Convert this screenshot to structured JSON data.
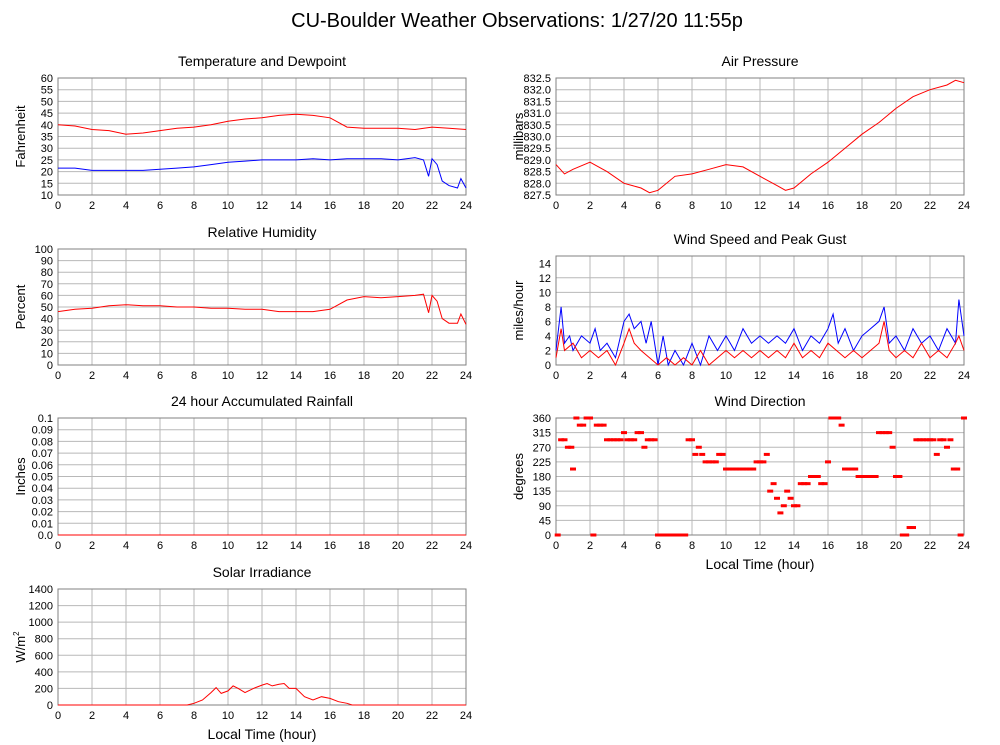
{
  "page": {
    "title": "CU-Boulder Weather Observations: 1/27/20 11:55p"
  },
  "colors": {
    "red": "#ff0000",
    "blue": "#0000ff",
    "grid": "#b8b8b8",
    "frame": "#808080"
  },
  "chart_data": [
    {
      "type": "line",
      "title": "Temperature and Dewpoint",
      "ylabel": "Fahrenheit",
      "xlabel": "",
      "xlim": [
        0,
        24
      ],
      "ylim": [
        10,
        60
      ],
      "grid": true,
      "x_ticks": [
        0,
        2,
        4,
        6,
        8,
        10,
        12,
        14,
        16,
        18,
        20,
        22,
        24
      ],
      "y_ticks": [
        "10",
        "15",
        "20",
        "25",
        "30",
        "35",
        "40",
        "45",
        "50",
        "55",
        "60"
      ],
      "series": [
        {
          "color": "red",
          "x": [
            0,
            1,
            2,
            3,
            4,
            5,
            6,
            7,
            8,
            9,
            10,
            11,
            12,
            13,
            14,
            15,
            16,
            17,
            18,
            19,
            20,
            21,
            22,
            23,
            24
          ],
          "values": [
            40,
            39.5,
            38,
            37.5,
            36,
            36.5,
            37.5,
            38.5,
            39,
            40,
            41.5,
            42.5,
            43,
            44,
            44.5,
            44,
            43,
            39,
            38.5,
            38.5,
            38.5,
            38,
            39,
            38.5,
            38
          ]
        },
        {
          "color": "blue",
          "x": [
            0,
            1,
            2,
            3,
            4,
            5,
            6,
            7,
            8,
            9,
            10,
            11,
            12,
            13,
            14,
            15,
            16,
            17,
            18,
            19,
            20,
            21,
            21.5,
            21.8,
            22,
            22.3,
            22.6,
            23,
            23.5,
            23.7,
            24
          ],
          "values": [
            21.5,
            21.5,
            20.5,
            20.5,
            20.5,
            20.5,
            21,
            21.5,
            22,
            23,
            24,
            24.5,
            25,
            25,
            25,
            25.5,
            25,
            25.5,
            25.5,
            25.5,
            25,
            26,
            25,
            18,
            25.5,
            23,
            16,
            14,
            13,
            17,
            13
          ]
        }
      ]
    },
    {
      "type": "line",
      "title": "Air Pressure",
      "ylabel": "millibars",
      "xlabel": "",
      "xlim": [
        0,
        24
      ],
      "ylim": [
        827.5,
        832.5
      ],
      "grid": true,
      "x_ticks": [
        0,
        2,
        4,
        6,
        8,
        10,
        12,
        14,
        16,
        18,
        20,
        22,
        24
      ],
      "y_ticks": [
        "827.5",
        "828.0",
        "828.5",
        "829.0",
        "829.5",
        "830.0",
        "830.5",
        "831.0",
        "831.5",
        "832.0",
        "832.5"
      ],
      "series": [
        {
          "color": "red",
          "x": [
            0,
            0.5,
            1,
            2,
            3,
            4,
            4.5,
            5,
            5.5,
            6,
            7,
            8,
            9,
            10,
            11,
            12,
            13,
            13.5,
            14,
            15,
            16,
            17,
            18,
            19,
            20,
            21,
            22,
            23,
            23.5,
            24
          ],
          "values": [
            828.8,
            828.4,
            828.6,
            828.9,
            828.5,
            828.0,
            827.9,
            827.8,
            827.6,
            827.7,
            828.3,
            828.4,
            828.6,
            828.8,
            828.7,
            828.3,
            827.9,
            827.7,
            827.8,
            828.4,
            828.9,
            829.5,
            830.1,
            830.6,
            831.2,
            831.7,
            832.0,
            832.2,
            832.4,
            832.3
          ]
        }
      ]
    },
    {
      "type": "line",
      "title": "Relative Humidity",
      "ylabel": "Percent",
      "xlabel": "",
      "xlim": [
        0,
        24
      ],
      "ylim": [
        0,
        100
      ],
      "grid": true,
      "x_ticks": [
        0,
        2,
        4,
        6,
        8,
        10,
        12,
        14,
        16,
        18,
        20,
        22,
        24
      ],
      "y_ticks": [
        "0",
        "10",
        "20",
        "30",
        "40",
        "50",
        "60",
        "70",
        "80",
        "90",
        "100"
      ],
      "series": [
        {
          "color": "red",
          "x": [
            0,
            1,
            2,
            3,
            4,
            5,
            6,
            7,
            8,
            9,
            10,
            11,
            12,
            13,
            14,
            15,
            16,
            17,
            18,
            19,
            20,
            21,
            21.5,
            21.8,
            22,
            22.3,
            22.6,
            23,
            23.5,
            23.7,
            24
          ],
          "values": [
            46,
            48,
            49,
            51,
            52,
            51,
            51,
            50,
            50,
            49,
            49,
            48,
            48,
            46,
            46,
            46,
            48,
            56,
            59,
            58,
            59,
            60,
            61,
            45,
            60,
            55,
            40,
            36,
            36,
            44,
            35
          ]
        }
      ]
    },
    {
      "type": "line",
      "title": "Wind Speed and Peak Gust",
      "ylabel": "miles/hour",
      "xlabel": "",
      "xlim": [
        0,
        24
      ],
      "ylim": [
        0,
        15
      ],
      "grid": true,
      "x_ticks": [
        0,
        2,
        4,
        6,
        8,
        10,
        12,
        14,
        16,
        18,
        20,
        22,
        24
      ],
      "y_ticks": [
        "0",
        "2",
        "4",
        "6",
        "8",
        "10",
        "12",
        "14"
      ],
      "series": [
        {
          "color": "blue",
          "x": [
            0,
            0.3,
            0.5,
            0.8,
            1,
            1.5,
            2,
            2.3,
            2.6,
            3,
            3.5,
            4,
            4.3,
            4.6,
            5,
            5.3,
            5.6,
            6,
            6.3,
            6.6,
            7,
            7.5,
            8,
            8.5,
            9,
            9.5,
            10,
            10.5,
            11,
            11.5,
            12,
            12.5,
            13,
            13.5,
            14,
            14.5,
            15,
            15.5,
            16,
            16.3,
            16.6,
            17,
            17.5,
            18,
            18.5,
            19,
            19.3,
            19.6,
            20,
            20.5,
            21,
            21.5,
            22,
            22.5,
            23,
            23.5,
            23.7,
            24
          ],
          "values": [
            2,
            8,
            3,
            4,
            2,
            4,
            3,
            5,
            2,
            3,
            1,
            6,
            7,
            5,
            6,
            3,
            6,
            0,
            4,
            0,
            2,
            0,
            3,
            0,
            4,
            2,
            4,
            2,
            5,
            3,
            4,
            3,
            4,
            3,
            5,
            2,
            4,
            3,
            5,
            7,
            3,
            5,
            2,
            4,
            5,
            6,
            8,
            3,
            4,
            2,
            5,
            3,
            4,
            2,
            5,
            3,
            9,
            4
          ]
        },
        {
          "color": "red",
          "x": [
            0,
            0.3,
            0.5,
            1,
            1.5,
            2,
            2.5,
            3,
            3.5,
            4,
            4.3,
            4.6,
            5,
            5.5,
            6,
            6.5,
            7,
            7.5,
            8,
            8.5,
            9,
            9.5,
            10,
            10.5,
            11,
            11.5,
            12,
            12.5,
            13,
            13.5,
            14,
            14.5,
            15,
            15.5,
            16,
            16.5,
            17,
            17.5,
            18,
            18.5,
            19,
            19.3,
            19.6,
            20,
            20.5,
            21,
            21.5,
            22,
            22.5,
            23,
            23.5,
            23.7,
            24
          ],
          "values": [
            1,
            5,
            2,
            3,
            1,
            2,
            1,
            2,
            0,
            3,
            5,
            3,
            2,
            1,
            0,
            1,
            0,
            1,
            0,
            2,
            0,
            1,
            2,
            1,
            2,
            1,
            2,
            1,
            2,
            1,
            3,
            1,
            2,
            1,
            3,
            2,
            1,
            2,
            1,
            2,
            3,
            6,
            2,
            1,
            2,
            1,
            3,
            1,
            2,
            1,
            3,
            4,
            2
          ]
        }
      ]
    },
    {
      "type": "line",
      "title": "24 hour Accumulated Rainfall",
      "ylabel": "Inches",
      "xlabel": "",
      "xlim": [
        0,
        24
      ],
      "ylim": [
        0,
        0.1
      ],
      "grid": true,
      "x_ticks": [
        0,
        2,
        4,
        6,
        8,
        10,
        12,
        14,
        16,
        18,
        20,
        22,
        24
      ],
      "y_ticks": [
        "0.0",
        "0.01",
        "0.02",
        "0.03",
        "0.04",
        "0.05",
        "0.06",
        "0.07",
        "0.08",
        "0.09",
        "0.1"
      ],
      "series": [
        {
          "color": "red",
          "x": [
            0,
            24
          ],
          "values": [
            0,
            0
          ]
        }
      ]
    },
    {
      "type": "scatter",
      "title": "Wind Direction",
      "ylabel": "degrees",
      "xlabel": "Local Time (hour)",
      "xlim": [
        0,
        24
      ],
      "ylim": [
        0,
        360
      ],
      "grid": true,
      "x_ticks": [
        0,
        2,
        4,
        6,
        8,
        10,
        12,
        14,
        16,
        18,
        20,
        22,
        24
      ],
      "y_ticks": [
        "0",
        "45",
        "90",
        "135",
        "180",
        "225",
        "270",
        "315",
        "360"
      ],
      "series": [
        {
          "color": "red",
          "x": [
            0.1,
            0.3,
            0.5,
            0.7,
            0.9,
            1.0,
            1.2,
            1.4,
            1.6,
            1.8,
            2.0,
            2.2,
            2.4,
            2.6,
            2.8,
            3.0,
            3.2,
            3.4,
            3.6,
            3.8,
            4.0,
            4.2,
            4.4,
            4.6,
            4.8,
            5.0,
            5.2,
            5.4,
            5.6,
            5.8,
            6.0,
            6.2,
            6.4,
            6.6,
            6.8,
            7.0,
            7.2,
            7.4,
            7.6,
            7.8,
            8.0,
            8.2,
            8.4,
            8.6,
            8.8,
            9.0,
            9.2,
            9.4,
            9.6,
            9.8,
            10.0,
            10.2,
            10.4,
            10.6,
            10.8,
            11.0,
            11.2,
            11.4,
            11.6,
            11.8,
            12.0,
            12.2,
            12.4,
            12.6,
            12.8,
            13.0,
            13.2,
            13.4,
            13.6,
            13.8,
            14.0,
            14.2,
            14.4,
            14.6,
            14.8,
            15.0,
            15.2,
            15.4,
            15.6,
            15.8,
            16.0,
            16.2,
            16.4,
            16.6,
            16.8,
            17.0,
            17.2,
            17.4,
            17.6,
            17.8,
            18.0,
            18.2,
            18.4,
            18.6,
            18.8,
            19.0,
            19.2,
            19.4,
            19.6,
            19.8,
            20.0,
            20.2,
            20.4,
            20.6,
            20.8,
            21.0,
            21.2,
            21.4,
            21.6,
            21.8,
            22.0,
            22.2,
            22.4,
            22.6,
            22.8,
            23.0,
            23.2,
            23.4,
            23.6,
            23.8,
            24.0
          ],
          "values": [
            0,
            293,
            293,
            270,
            270,
            203,
            360,
            338,
            338,
            360,
            360,
            0,
            338,
            338,
            338,
            293,
            293,
            293,
            293,
            293,
            315,
            293,
            293,
            293,
            315,
            315,
            270,
            293,
            293,
            293,
            0,
            0,
            0,
            0,
            0,
            0,
            0,
            0,
            0,
            293,
            293,
            248,
            270,
            248,
            225,
            225,
            225,
            225,
            248,
            248,
            203,
            203,
            203,
            203,
            203,
            203,
            203,
            203,
            203,
            225,
            225,
            225,
            248,
            135,
            158,
            113,
            68,
            90,
            135,
            113,
            90,
            90,
            158,
            158,
            158,
            180,
            180,
            180,
            158,
            158,
            225,
            360,
            360,
            360,
            338,
            203,
            203,
            203,
            203,
            180,
            180,
            180,
            180,
            180,
            180,
            315,
            315,
            315,
            315,
            270,
            180,
            180,
            0,
            0,
            23,
            23,
            293,
            293,
            293,
            293,
            293,
            293,
            248,
            293,
            293,
            270,
            293,
            203,
            203,
            0,
            360
          ]
        }
      ]
    },
    {
      "type": "line",
      "title": "Solar Irradiance",
      "ylabel": "W/m",
      "ylabel_sup": "2",
      "xlabel": "Local Time (hour)",
      "xlim": [
        0,
        24
      ],
      "ylim": [
        0,
        1400
      ],
      "grid": true,
      "x_ticks": [
        0,
        2,
        4,
        6,
        8,
        10,
        12,
        14,
        16,
        18,
        20,
        22,
        24
      ],
      "y_ticks": [
        "0",
        "200",
        "400",
        "600",
        "800",
        "1000",
        "1200",
        "1400"
      ],
      "series": [
        {
          "color": "red",
          "x": [
            0,
            7.6,
            8,
            8.5,
            9,
            9.3,
            9.6,
            10,
            10.3,
            10.6,
            11,
            11.5,
            12,
            12.3,
            12.6,
            13,
            13.3,
            13.6,
            14,
            14.5,
            15,
            15.5,
            16,
            16.5,
            17,
            17.3,
            24
          ],
          "values": [
            0,
            0,
            20,
            60,
            150,
            210,
            140,
            170,
            230,
            200,
            150,
            200,
            240,
            260,
            230,
            250,
            260,
            200,
            200,
            100,
            60,
            100,
            80,
            40,
            20,
            0,
            0
          ]
        }
      ]
    }
  ]
}
